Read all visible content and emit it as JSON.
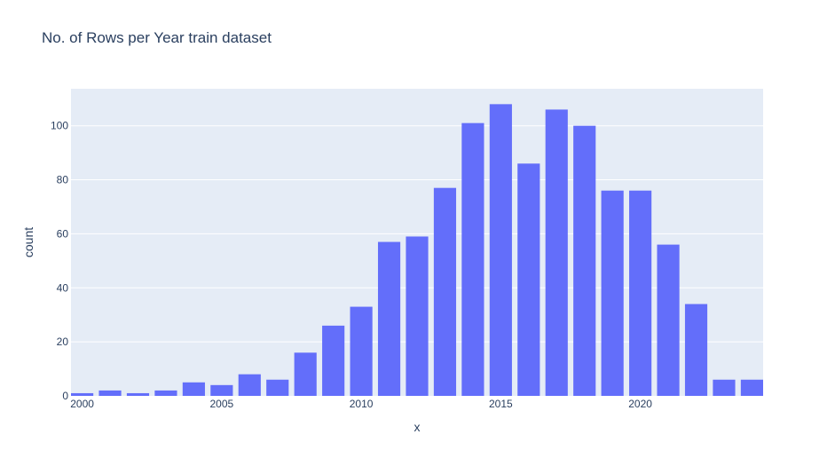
{
  "chart_data": {
    "type": "bar",
    "title": "No. of Rows per Year train dataset",
    "xlabel": "x",
    "ylabel": "count",
    "x": [
      2000,
      2001,
      2002,
      2003,
      2004,
      2005,
      2006,
      2007,
      2008,
      2009,
      2010,
      2011,
      2012,
      2013,
      2014,
      2015,
      2016,
      2017,
      2018,
      2019,
      2020,
      2021,
      2022,
      2023,
      2024
    ],
    "values": [
      1,
      2,
      1,
      2,
      5,
      4,
      8,
      6,
      16,
      26,
      33,
      57,
      59,
      77,
      101,
      108,
      86,
      106,
      100,
      76,
      76,
      56,
      34,
      6,
      6
    ],
    "xlim": [
      1999.6,
      2024.4
    ],
    "ylim": [
      0,
      113.7
    ],
    "x_ticks": [
      2000,
      2005,
      2010,
      2015,
      2020
    ],
    "y_ticks": [
      0,
      20,
      40,
      60,
      80,
      100
    ],
    "grid": true,
    "colors": {
      "bar": "#636efa",
      "plot_bg": "#e5ecf6",
      "grid": "#ffffff",
      "text": "#2a3f5f"
    }
  }
}
